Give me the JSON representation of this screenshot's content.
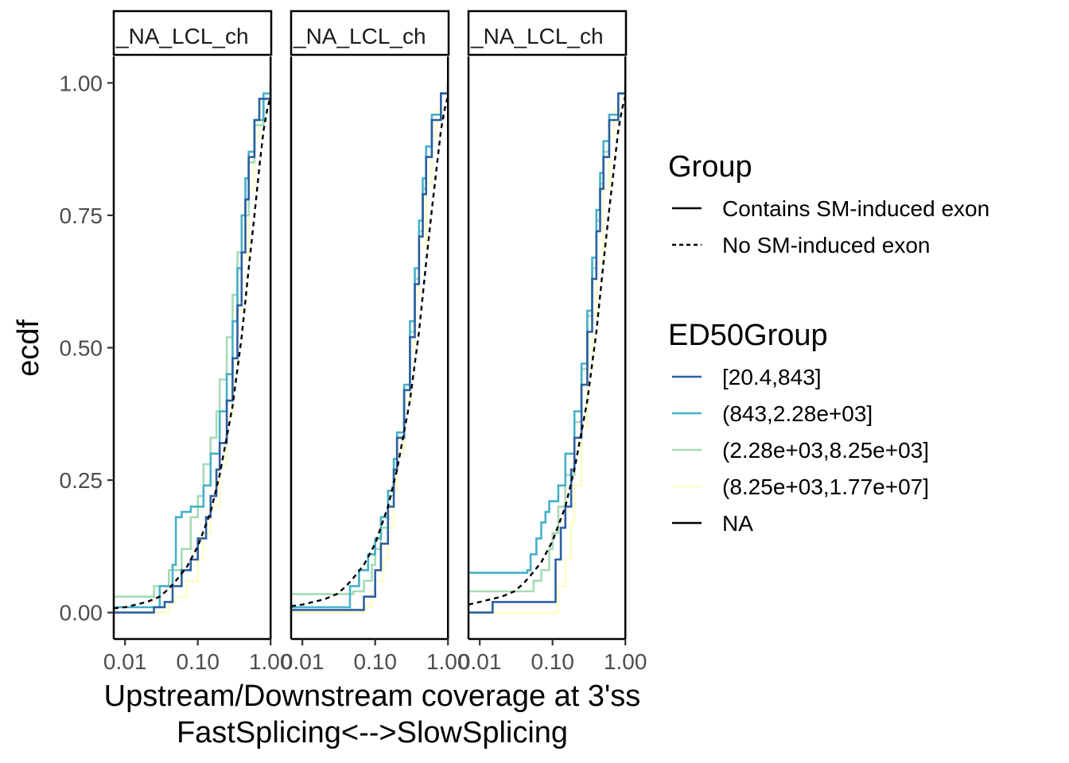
{
  "chart_data": {
    "type": "line",
    "subtype": "ecdf-faceted",
    "xlabel_line1": "Upstream/Downstream coverage at 3'ss",
    "xlabel_line2": "FastSplicing<-->SlowSplicing",
    "ylabel": "ecdf",
    "x_scale": "log10",
    "xlim": [
      0.007,
      1.02
    ],
    "ylim": [
      -0.05,
      1.05
    ],
    "x_ticks": [
      0.01,
      0.1,
      1.0
    ],
    "x_tick_labels": [
      "0.01",
      "0.10",
      "1.00"
    ],
    "y_ticks": [
      0,
      0.25,
      0.5,
      0.75,
      1.0
    ],
    "y_tick_labels": [
      "0.00",
      "0.25",
      "0.50",
      "0.75",
      "1.00"
    ],
    "grid": false,
    "legend_position": "right",
    "colors": {
      "[20.4,843]": "#2c5fa0",
      "(843,2.28e+03]": "#45b1c8",
      "(2.28e+03,8.25e+03]": "#a6dbb5",
      "(8.25e+03,1.77e+07]": "#fdfdc8",
      "NA": "#000000"
    },
    "facets": [
      {
        "label": "_NA_LCL_ch",
        "series": [
          {
            "ed50": "(2.28e+03,8.25e+03]",
            "group": "Contains SM-induced exon",
            "x": [
              0.007,
              0.025,
              0.025,
              0.04,
              0.04,
              0.06,
              0.06,
              0.08,
              0.08,
              0.1,
              0.12,
              0.15,
              0.18,
              0.2,
              0.25,
              0.3,
              0.35,
              0.4,
              0.5,
              0.6,
              0.8,
              1.0
            ],
            "y": [
              0.03,
              0.03,
              0.05,
              0.05,
              0.08,
              0.08,
              0.12,
              0.15,
              0.18,
              0.22,
              0.28,
              0.33,
              0.38,
              0.44,
              0.52,
              0.6,
              0.68,
              0.75,
              0.85,
              0.92,
              0.97,
              1.0
            ]
          },
          {
            "ed50": "(843,2.28e+03]",
            "group": "Contains SM-induced exon",
            "x": [
              0.007,
              0.03,
              0.03,
              0.045,
              0.05,
              0.06,
              0.07,
              0.08,
              0.1,
              0.12,
              0.15,
              0.2,
              0.25,
              0.3,
              0.35,
              0.4,
              0.45,
              0.5,
              0.6,
              0.8,
              1.0
            ],
            "y": [
              0.01,
              0.01,
              0.05,
              0.09,
              0.18,
              0.19,
              0.19,
              0.2,
              0.2,
              0.24,
              0.3,
              0.38,
              0.45,
              0.55,
              0.65,
              0.75,
              0.82,
              0.87,
              0.93,
              0.98,
              1.0
            ]
          },
          {
            "ed50": "[20.4,843]",
            "group": "Contains SM-induced exon",
            "x": [
              0.007,
              0.025,
              0.025,
              0.035,
              0.045,
              0.06,
              0.08,
              0.1,
              0.13,
              0.15,
              0.18,
              0.2,
              0.25,
              0.3,
              0.35,
              0.4,
              0.45,
              0.5,
              0.6,
              0.7,
              1.0
            ],
            "y": [
              0.0,
              0.0,
              0.01,
              0.02,
              0.05,
              0.08,
              0.1,
              0.14,
              0.18,
              0.22,
              0.27,
              0.32,
              0.4,
              0.48,
              0.58,
              0.68,
              0.78,
              0.86,
              0.93,
              0.97,
              1.0
            ]
          },
          {
            "ed50": "(8.25e+03,1.77e+07]",
            "group": "Contains SM-induced exon",
            "x": [
              0.007,
              0.03,
              0.04,
              0.05,
              0.07,
              0.1,
              0.12,
              0.15,
              0.2,
              0.25,
              0.3,
              0.35,
              0.4,
              0.5,
              0.6,
              0.7,
              0.8,
              1.0
            ],
            "y": [
              0.0,
              0.0,
              0.02,
              0.03,
              0.06,
              0.1,
              0.15,
              0.2,
              0.28,
              0.37,
              0.47,
              0.57,
              0.67,
              0.8,
              0.9,
              0.95,
              0.98,
              1.0
            ]
          },
          {
            "ed50": "NA",
            "group": "No SM-induced exon",
            "x": [
              0.007,
              0.01,
              0.02,
              0.03,
              0.04,
              0.05,
              0.07,
              0.1,
              0.15,
              0.2,
              0.3,
              0.4,
              0.5,
              0.6,
              0.7,
              0.8,
              0.9,
              1.02
            ],
            "y": [
              0.008,
              0.01,
              0.02,
              0.03,
              0.045,
              0.06,
              0.085,
              0.125,
              0.19,
              0.26,
              0.39,
              0.52,
              0.65,
              0.75,
              0.84,
              0.91,
              0.95,
              0.98
            ]
          }
        ]
      },
      {
        "label": "_NA_LCL_ch",
        "series": [
          {
            "ed50": "(2.28e+03,8.25e+03]",
            "group": "Contains SM-induced exon",
            "x": [
              0.007,
              0.045,
              0.05,
              0.07,
              0.09,
              0.1,
              0.12,
              0.15,
              0.18,
              0.2,
              0.25,
              0.3,
              0.35,
              0.4,
              0.45,
              0.5,
              0.6,
              0.8,
              1.0
            ],
            "y": [
              0.035,
              0.035,
              0.04,
              0.06,
              0.09,
              0.12,
              0.16,
              0.22,
              0.27,
              0.33,
              0.42,
              0.53,
              0.63,
              0.72,
              0.8,
              0.86,
              0.93,
              0.98,
              1.0
            ]
          },
          {
            "ed50": "(843,2.28e+03]",
            "group": "Contains SM-induced exon",
            "x": [
              0.007,
              0.035,
              0.045,
              0.06,
              0.08,
              0.1,
              0.12,
              0.15,
              0.18,
              0.2,
              0.25,
              0.3,
              0.35,
              0.4,
              0.45,
              0.5,
              0.6,
              0.8,
              1.0
            ],
            "y": [
              0.01,
              0.01,
              0.05,
              0.08,
              0.11,
              0.14,
              0.18,
              0.23,
              0.29,
              0.34,
              0.43,
              0.55,
              0.65,
              0.74,
              0.82,
              0.88,
              0.94,
              0.98,
              1.0
            ]
          },
          {
            "ed50": "[20.4,843]",
            "group": "Contains SM-induced exon",
            "x": [
              0.007,
              0.06,
              0.07,
              0.1,
              0.12,
              0.15,
              0.18,
              0.2,
              0.25,
              0.3,
              0.35,
              0.4,
              0.45,
              0.5,
              0.6,
              0.8,
              1.0
            ],
            "y": [
              0.005,
              0.005,
              0.03,
              0.08,
              0.13,
              0.2,
              0.27,
              0.33,
              0.42,
              0.52,
              0.62,
              0.71,
              0.79,
              0.86,
              0.93,
              0.98,
              1.0
            ]
          },
          {
            "ed50": "(8.25e+03,1.77e+07]",
            "group": "Contains SM-induced exon",
            "x": [
              0.007,
              0.06,
              0.07,
              0.09,
              0.1,
              0.13,
              0.15,
              0.18,
              0.2,
              0.25,
              0.3,
              0.35,
              0.4,
              0.5,
              0.6,
              0.7,
              0.8,
              1.0
            ],
            "y": [
              0.0,
              0.0,
              0.01,
              0.04,
              0.06,
              0.1,
              0.16,
              0.23,
              0.3,
              0.4,
              0.5,
              0.6,
              0.69,
              0.81,
              0.9,
              0.95,
              0.98,
              1.0
            ]
          },
          {
            "ed50": "NA",
            "group": "No SM-induced exon",
            "x": [
              0.007,
              0.01,
              0.02,
              0.03,
              0.04,
              0.05,
              0.07,
              0.1,
              0.15,
              0.2,
              0.3,
              0.4,
              0.5,
              0.6,
              0.7,
              0.8,
              0.9,
              1.02
            ],
            "y": [
              0.012,
              0.015,
              0.025,
              0.035,
              0.05,
              0.065,
              0.09,
              0.13,
              0.2,
              0.27,
              0.4,
              0.53,
              0.66,
              0.76,
              0.84,
              0.91,
              0.95,
              0.98
            ]
          }
        ]
      },
      {
        "label": "_NA_LCL_ch",
        "series": [
          {
            "ed50": "(843,2.28e+03]",
            "group": "Contains SM-induced exon",
            "x": [
              0.007,
              0.04,
              0.045,
              0.05,
              0.06,
              0.07,
              0.08,
              0.09,
              0.1,
              0.12,
              0.15,
              0.2,
              0.25,
              0.3,
              0.35,
              0.4,
              0.45,
              0.5,
              0.6,
              0.8,
              1.0
            ],
            "y": [
              0.075,
              0.075,
              0.08,
              0.11,
              0.14,
              0.17,
              0.19,
              0.21,
              0.21,
              0.24,
              0.3,
              0.38,
              0.47,
              0.57,
              0.67,
              0.76,
              0.83,
              0.89,
              0.94,
              0.98,
              1.0
            ]
          },
          {
            "ed50": "(2.28e+03,8.25e+03]",
            "group": "Contains SM-induced exon",
            "x": [
              0.007,
              0.05,
              0.055,
              0.07,
              0.09,
              0.1,
              0.12,
              0.15,
              0.2,
              0.25,
              0.3,
              0.35,
              0.4,
              0.45,
              0.5,
              0.6,
              0.8,
              1.0
            ],
            "y": [
              0.04,
              0.04,
              0.06,
              0.08,
              0.12,
              0.15,
              0.2,
              0.26,
              0.36,
              0.46,
              0.56,
              0.65,
              0.74,
              0.81,
              0.87,
              0.93,
              0.98,
              1.0
            ]
          },
          {
            "ed50": "[20.4,843]",
            "group": "Contains SM-induced exon",
            "x": [
              0.007,
              0.015,
              0.015,
              0.1,
              0.11,
              0.13,
              0.15,
              0.18,
              0.2,
              0.25,
              0.3,
              0.35,
              0.4,
              0.45,
              0.5,
              0.6,
              0.8,
              1.0
            ],
            "y": [
              0.0,
              0.0,
              0.02,
              0.02,
              0.1,
              0.16,
              0.2,
              0.27,
              0.33,
              0.43,
              0.53,
              0.63,
              0.72,
              0.8,
              0.86,
              0.93,
              0.98,
              1.0
            ]
          },
          {
            "ed50": "(8.25e+03,1.77e+07]",
            "group": "Contains SM-induced exon",
            "x": [
              0.007,
              0.1,
              0.12,
              0.15,
              0.18,
              0.2,
              0.25,
              0.3,
              0.35,
              0.4,
              0.5,
              0.6,
              0.7,
              0.8,
              1.0
            ],
            "y": [
              0.0,
              0.0,
              0.05,
              0.1,
              0.17,
              0.24,
              0.35,
              0.46,
              0.56,
              0.66,
              0.8,
              0.9,
              0.95,
              0.98,
              1.0
            ]
          },
          {
            "ed50": "NA",
            "group": "No SM-induced exon",
            "x": [
              0.007,
              0.01,
              0.02,
              0.03,
              0.04,
              0.05,
              0.07,
              0.1,
              0.15,
              0.2,
              0.3,
              0.4,
              0.5,
              0.6,
              0.7,
              0.8,
              0.9,
              1.02
            ],
            "y": [
              0.015,
              0.02,
              0.03,
              0.04,
              0.055,
              0.07,
              0.095,
              0.135,
              0.2,
              0.27,
              0.4,
              0.53,
              0.66,
              0.76,
              0.84,
              0.91,
              0.95,
              0.98
            ]
          }
        ]
      }
    ],
    "legends": [
      {
        "title": "Group",
        "items": [
          {
            "label": "Contains SM-induced exon",
            "style": "solid",
            "color": "#000000"
          },
          {
            "label": "No SM-induced exon",
            "style": "dashed",
            "color": "#000000"
          }
        ]
      },
      {
        "title": "ED50Group",
        "items": [
          {
            "label": "[20.4,843]",
            "style": "solid",
            "color": "#2c5fa0"
          },
          {
            "label": "(843,2.28e+03]",
            "style": "solid",
            "color": "#45b1c8"
          },
          {
            "label": "(2.28e+03,8.25e+03]",
            "style": "solid",
            "color": "#a6dbb5"
          },
          {
            "label": "(8.25e+03,1.77e+07]",
            "style": "solid",
            "color": "#fdfdc8"
          },
          {
            "label": "NA",
            "style": "solid",
            "color": "#000000"
          }
        ]
      }
    ]
  }
}
